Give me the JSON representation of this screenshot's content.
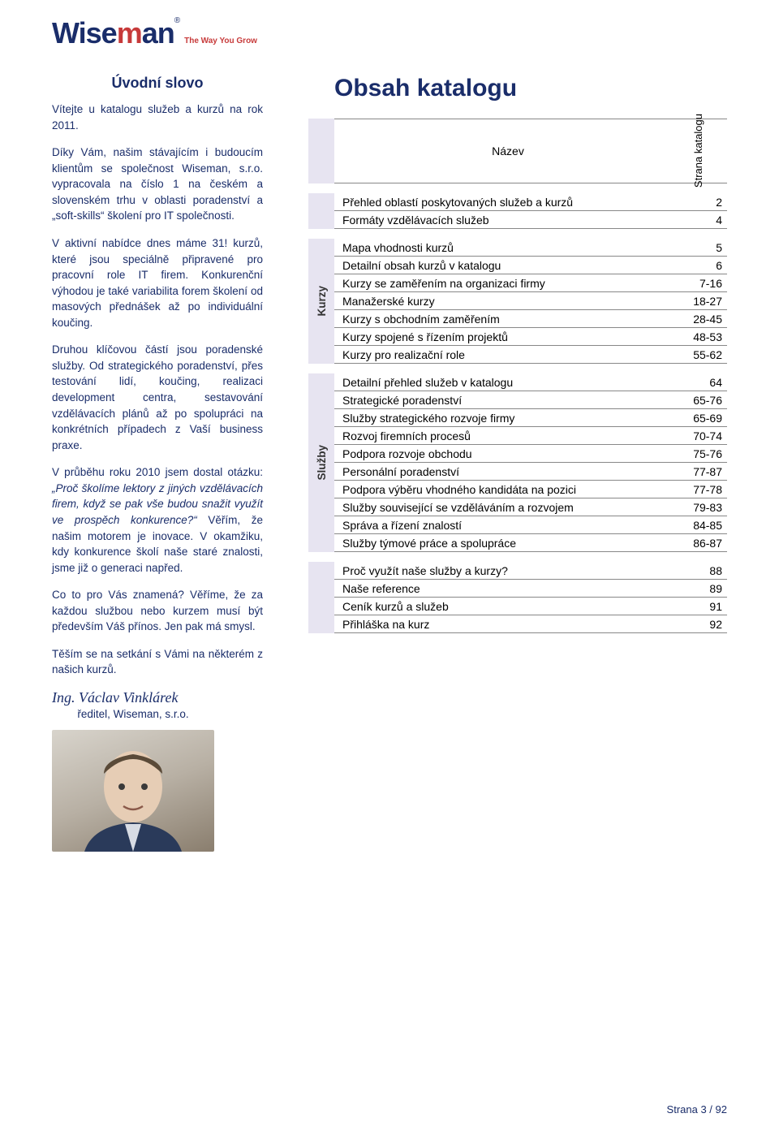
{
  "logo": {
    "brand_left": "Wise",
    "brand_right": "an",
    "reg": "®",
    "tagline": "The Way You Grow"
  },
  "intro": {
    "title": "Úvodní slovo",
    "p1": "Vítejte u katalogu služeb a kurzů na rok 2011.",
    "p2": "Díky Vám, našim stávajícím i budoucím klientům se společnost Wiseman, s.r.o. vypracovala na číslo 1 na českém a slovenském trhu v oblasti poradenství a „soft-skills“ školení pro IT společnosti.",
    "p3": "V aktivní nabídce dnes máme 31! kurzů, které jsou speciálně připravené pro pracovní role IT firem. Konkurenční výhodou je také variabilita forem školení od masových přednášek až po individuální koučing.",
    "p4": "Druhou klíčovou částí jsou poradenské služby. Od strategického poradenství, přes testování lidí, koučing, realizaci development centra, sestavování vzdělávacích plánů až po spolupráci na konkrétních případech z Vaší business praxe.",
    "p5a": "V průběhu roku 2010 jsem dostal otázku: ",
    "p5b": "„Proč školíme lektory z jiných vzdělávacích firem, když se pak vše budou snažit využít ve prospěch konkurence?“",
    "p5c": " Věřím, že našim motorem je inovace. V okamžiku, kdy konkurence školí naše staré znalosti, jsme již o generaci napřed.",
    "p6": "Co to pro Vás znamená? Věříme, že za každou službou nebo kurzem musí být především Váš přínos. Jen pak má smysl.",
    "p7": "Těším se na setkání s Vámi na některém z našich kurzů.",
    "signature": "Ing. Václav Vinklárek",
    "signature_sub": "ředitel, Wiseman, s.r.o."
  },
  "toc": {
    "title": "Obsah katalogu",
    "header_name": "Název",
    "header_page": "Strana katalogu",
    "tab_kurzy": "Kurzy",
    "tab_sluzby": "Služby",
    "colors": {
      "block_accent": "#e7e4f1",
      "text_primary": "#1a2d6a",
      "row_border": "#888888"
    },
    "groups": [
      {
        "tab": null,
        "rows": [
          {
            "name": "Přehled oblastí poskytovaných služeb a kurzů",
            "page": "2"
          },
          {
            "name": "Formáty vzdělávacích služeb",
            "page": "4"
          }
        ]
      },
      {
        "tab": "Kurzy",
        "rows": [
          {
            "name": "Mapa vhodnosti kurzů",
            "page": "5"
          },
          {
            "name": "Detailní obsah kurzů v katalogu",
            "page": "6"
          },
          {
            "name": "Kurzy se zaměřením na organizaci firmy",
            "page": "7-16"
          },
          {
            "name": "Manažerské kurzy",
            "page": "18-27"
          },
          {
            "name": "Kurzy s obchodním zaměřením",
            "page": "28-45"
          },
          {
            "name": "Kurzy spojené s řízením projektů",
            "page": "48-53"
          },
          {
            "name": "Kurzy pro realizační role",
            "page": "55-62"
          }
        ]
      },
      {
        "tab": "Služby",
        "rows": [
          {
            "name": "Detailní přehled služeb v katalogu",
            "page": "64"
          },
          {
            "name": "Strategické poradenství",
            "page": "65-76"
          },
          {
            "name": "Služby strategického rozvoje firmy",
            "page": "65-69"
          },
          {
            "name": "Rozvoj firemních procesů",
            "page": "70-74"
          },
          {
            "name": "Podpora rozvoje obchodu",
            "page": "75-76"
          },
          {
            "name": "Personální poradenství",
            "page": "77-87"
          },
          {
            "name": "Podpora výběru vhodného kandidáta na pozici",
            "page": "77-78"
          },
          {
            "name": "Služby související se vzděláváním a rozvojem",
            "page": "79-83"
          },
          {
            "name": "Správa a řízení znalostí",
            "page": "84-85"
          },
          {
            "name": "Služby týmové práce a spolupráce",
            "page": "86-87"
          }
        ]
      },
      {
        "tab": null,
        "rows": [
          {
            "name": "Proč využít naše služby a kurzy?",
            "page": "88"
          },
          {
            "name": "Naše reference",
            "page": "89"
          },
          {
            "name": "Ceník kurzů a služeb",
            "page": "91"
          },
          {
            "name": "Přihláška na kurz",
            "page": "92"
          }
        ]
      }
    ]
  },
  "footer": "Strana 3 / 92"
}
